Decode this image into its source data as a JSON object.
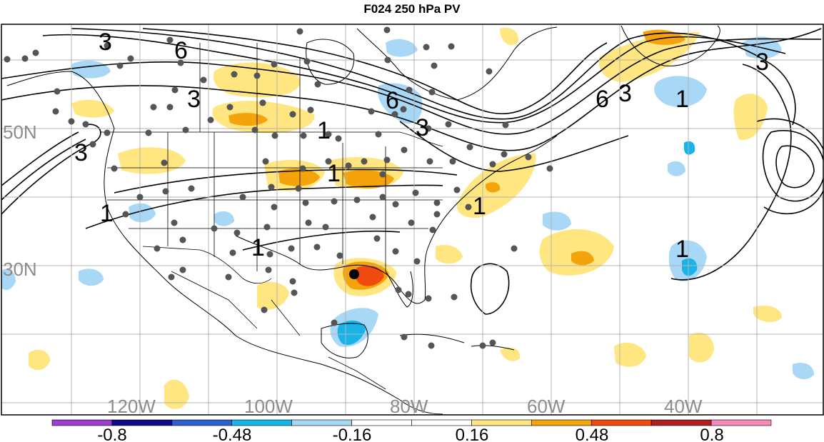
{
  "title": "F024 250 hPa PV",
  "lat_labels": [
    "50N",
    "30N"
  ],
  "lon_labels": [
    "120W",
    "100W",
    "80W",
    "60W",
    "40W"
  ],
  "contour_labels": [
    "3",
    "6",
    "3",
    "6",
    "3",
    "6",
    "3",
    "3",
    "1",
    "1",
    "1",
    "1",
    "1",
    "1",
    "1"
  ],
  "colorbar": {
    "ticks": [
      "-0.8",
      "-0.48",
      "-0.16",
      "0.16",
      "0.48",
      "0.8"
    ],
    "colors": [
      "#9a3ecf",
      "#0a0a8a",
      "#2e5fd0",
      "#18b4e8",
      "#a8d8f5",
      "#ffffff",
      "#ffffff",
      "#ffe680",
      "#f5a30a",
      "#f04a0e",
      "#b01e1e",
      "#f58cb8"
    ]
  },
  "colors": {
    "positive_weak": "#ffe680",
    "positive_mid": "#f5a30a",
    "positive_strong": "#f04a0e",
    "negative_weak": "#a8d8f5",
    "negative_mid": "#18b4e8",
    "station_dot": "#555555",
    "highlight_dot": "#000000",
    "grid": "#b4b4b4",
    "coast": "#000000"
  }
}
